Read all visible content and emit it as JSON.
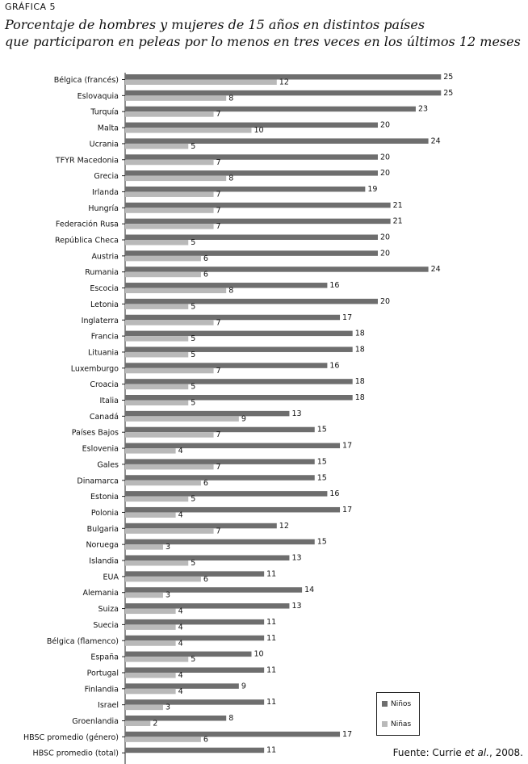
{
  "header": {
    "label": "GRÁFICA 5",
    "title_line1": "Porcentaje de hombres y mujeres de 15 años en distintos países",
    "title_line2": "que participaron en peleas por lo menos en tres veces en los últimos 12 meses"
  },
  "legend": {
    "ninos": "Niños",
    "ninas": "Niñas"
  },
  "source": {
    "prefix": "Fuente: Currie ",
    "italic": "et al.",
    "suffix": ", 2008."
  },
  "colors": {
    "ninos": "#6e6e6e",
    "ninas": "#b9b9b9"
  },
  "chart_data": {
    "type": "bar",
    "orientation": "horizontal",
    "xlim": [
      0,
      25
    ],
    "grid": false,
    "legend_position": "bottom-right",
    "categories": [
      "Bélgica (francés)",
      "Eslovaquia",
      "Turquía",
      "Malta",
      "Ucrania",
      "TFYR Macedonia",
      "Grecia",
      "Irlanda",
      "Hungría",
      "Federación Rusa",
      "República Checa",
      "Austria",
      "Rumania",
      "Escocia",
      "Letonia",
      "Inglaterra",
      "Francia",
      "Lituania",
      "Luxemburgo",
      "Croacia",
      "Italia",
      "Canadá",
      "Países Bajos",
      "Eslovenia",
      "Gales",
      "Dinamarca",
      "Estonia",
      "Polonia",
      "Bulgaria",
      "Noruega",
      "Islandia",
      "EUA",
      "Alemania",
      "Suiza",
      "Suecia",
      "Bélgica (flamenco)",
      "España",
      "Portugal",
      "Finlandia",
      "Israel",
      "Groenlandia",
      "HBSC promedio (género)",
      "HBSC promedio (total)"
    ],
    "series": [
      {
        "name": "Niños",
        "values": [
          25,
          25,
          23,
          20,
          24,
          20,
          20,
          19,
          21,
          21,
          20,
          20,
          24,
          16,
          20,
          17,
          18,
          18,
          16,
          18,
          18,
          13,
          15,
          17,
          15,
          15,
          16,
          17,
          12,
          15,
          13,
          11,
          14,
          13,
          11,
          11,
          10,
          11,
          9,
          11,
          8,
          17,
          11
        ]
      },
      {
        "name": "Niñas",
        "values": [
          12,
          8,
          7,
          10,
          5,
          7,
          8,
          7,
          7,
          7,
          5,
          6,
          6,
          8,
          5,
          7,
          5,
          5,
          7,
          5,
          5,
          9,
          7,
          4,
          7,
          6,
          5,
          4,
          7,
          3,
          5,
          6,
          3,
          4,
          4,
          4,
          5,
          4,
          4,
          3,
          2,
          6,
          null
        ]
      }
    ]
  }
}
